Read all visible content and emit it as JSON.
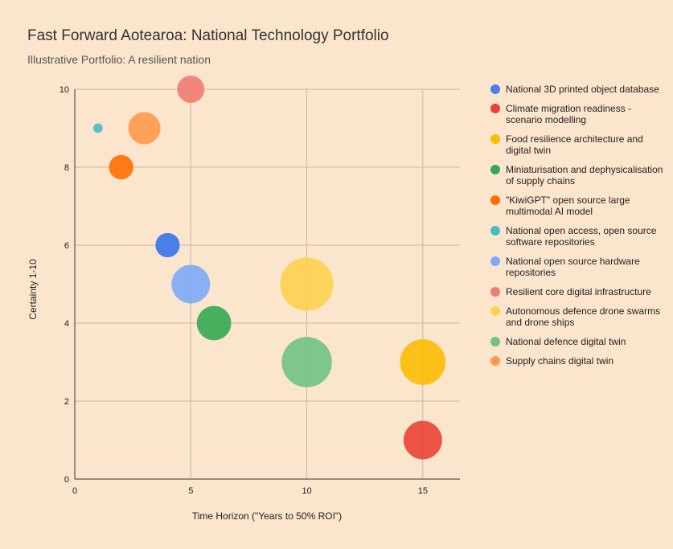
{
  "chart_data": {
    "type": "scatter",
    "title": "Fast Forward Aotearoa: National Technology Portfolio",
    "subtitle": "Illustrative Portfolio: A resilient nation",
    "xlabel": "Time Horizon (\"Years to 50% ROI\")",
    "ylabel": "Certainty 1-10",
    "xlim": [
      0,
      16.6
    ],
    "ylim": [
      0,
      10
    ],
    "xticks": [
      0,
      5,
      10,
      15
    ],
    "yticks": [
      0,
      2,
      4,
      6,
      8,
      10
    ],
    "grid": true,
    "legend_position": "right",
    "series": [
      {
        "name": "National 3D printed object database",
        "color": "#4a7ee8",
        "opacity": 1,
        "x": 4,
        "y": 6,
        "size": 2
      },
      {
        "name": "Climate migration readiness - scenario modelling",
        "color": "#ea4335",
        "opacity": 0.9,
        "x": 15,
        "y": 1,
        "size": 5
      },
      {
        "name": "Food resilience architecture and digital twin",
        "color": "#fbbc04",
        "opacity": 0.9,
        "x": 15,
        "y": 3,
        "size": 7
      },
      {
        "name": "Miniaturisation and dephysicalisation of supply chains",
        "color": "#34a853",
        "opacity": 0.9,
        "x": 6,
        "y": 4,
        "size": 4
      },
      {
        "name": "\"KiwiGPT\" open source large multimodal AI model",
        "color": "#ff6d01",
        "opacity": 0.9,
        "x": 2,
        "y": 8,
        "size": 2
      },
      {
        "name": "National open access, open source software repositories",
        "color": "#46bdc6",
        "opacity": 0.9,
        "x": 1,
        "y": 9,
        "size": 0.3
      },
      {
        "name": "National open source hardware repositories",
        "color": "#7baaf7",
        "opacity": 0.9,
        "x": 5,
        "y": 5,
        "size": 5
      },
      {
        "name": "Resilient core digital infrastructure",
        "color": "#f07b72",
        "opacity": 0.9,
        "x": 5,
        "y": 10,
        "size": 2.5
      },
      {
        "name": "Autonomous defence drone swarms and drone ships",
        "color": "#fcd04f",
        "opacity": 0.9,
        "x": 10,
        "y": 5,
        "size": 9.5
      },
      {
        "name": "National defence digital twin",
        "color": "#71c287",
        "opacity": 0.9,
        "x": 10,
        "y": 3,
        "size": 8.5
      },
      {
        "name": "Supply chains digital twin",
        "color": "#ff994d",
        "opacity": 0.9,
        "x": 3,
        "y": 9,
        "size": 3.5
      }
    ]
  }
}
